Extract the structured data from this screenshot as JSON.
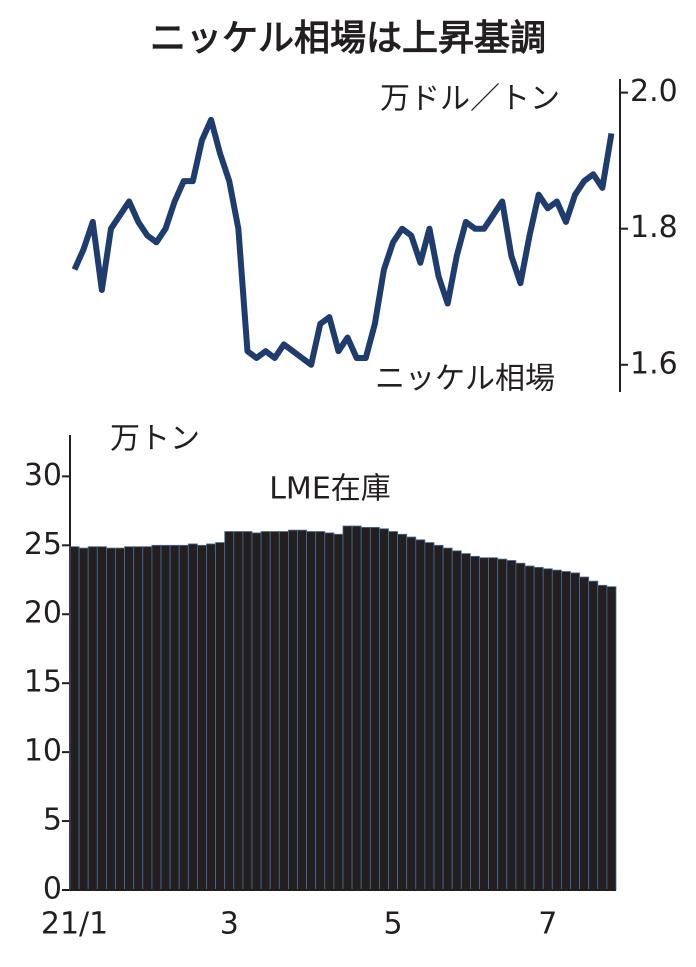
{
  "title": "ニッケル相場は上昇基調",
  "chart_data": [
    {
      "type": "line",
      "y_label": "万ドル／トン",
      "axis_side": "right",
      "series": [
        {
          "name": "ニッケル相場",
          "color": "#1f3c6e",
          "values": [
            1.74,
            1.77,
            1.81,
            1.71,
            1.8,
            1.82,
            1.84,
            1.81,
            1.79,
            1.78,
            1.8,
            1.84,
            1.87,
            1.87,
            1.93,
            1.96,
            1.91,
            1.87,
            1.8,
            1.62,
            1.61,
            1.62,
            1.61,
            1.63,
            1.62,
            1.61,
            1.6,
            1.66,
            1.67,
            1.62,
            1.64,
            1.61,
            1.61,
            1.66,
            1.74,
            1.78,
            1.8,
            1.79,
            1.75,
            1.8,
            1.73,
            1.69,
            1.76,
            1.81,
            1.8,
            1.8,
            1.82,
            1.84,
            1.76,
            1.72,
            1.79,
            1.85,
            1.83,
            1.84,
            1.81,
            1.85,
            1.87,
            1.88,
            1.86,
            1.94
          ]
        }
      ],
      "ylim": [
        1.56,
        2.02
      ],
      "yticks": [
        1.6,
        1.8,
        {
          "value": 2,
          "label": "2.0"
        }
      ]
    },
    {
      "type": "bar",
      "y_label": "万トン",
      "axis_side": "left",
      "categories": [
        "21/1",
        null,
        null,
        null,
        null,
        null,
        null,
        null,
        null,
        null,
        null,
        null,
        null,
        null,
        null,
        null,
        null,
        "3",
        null,
        null,
        null,
        null,
        null,
        null,
        null,
        null,
        null,
        null,
        null,
        null,
        null,
        null,
        null,
        null,
        null,
        "5",
        null,
        null,
        null,
        null,
        null,
        null,
        null,
        null,
        null,
        null,
        null,
        null,
        null,
        null,
        null,
        null,
        "7",
        null,
        null,
        null,
        null,
        null,
        null,
        null
      ],
      "series": [
        {
          "name": "LME在庫",
          "color": "#231f20",
          "values": [
            24.9,
            24.8,
            24.9,
            24.9,
            24.8,
            24.8,
            24.9,
            24.9,
            24.9,
            25.0,
            25.0,
            25.0,
            25.0,
            25.1,
            25.0,
            25.1,
            25.2,
            26.0,
            26.0,
            26.0,
            25.9,
            26.0,
            26.0,
            26.0,
            26.1,
            26.1,
            26.0,
            26.0,
            25.9,
            25.8,
            26.4,
            26.4,
            26.3,
            26.3,
            26.2,
            26.0,
            25.8,
            25.6,
            25.4,
            25.2,
            25.0,
            24.8,
            24.6,
            24.4,
            24.2,
            24.1,
            24.1,
            24.0,
            23.9,
            23.7,
            23.5,
            23.4,
            23.3,
            23.2,
            23.1,
            23.0,
            22.7,
            22.4,
            22.1,
            22.0
          ]
        }
      ],
      "ylim": [
        0,
        33
      ],
      "yticks": [
        0,
        5,
        10,
        15,
        20,
        25,
        30
      ]
    }
  ]
}
